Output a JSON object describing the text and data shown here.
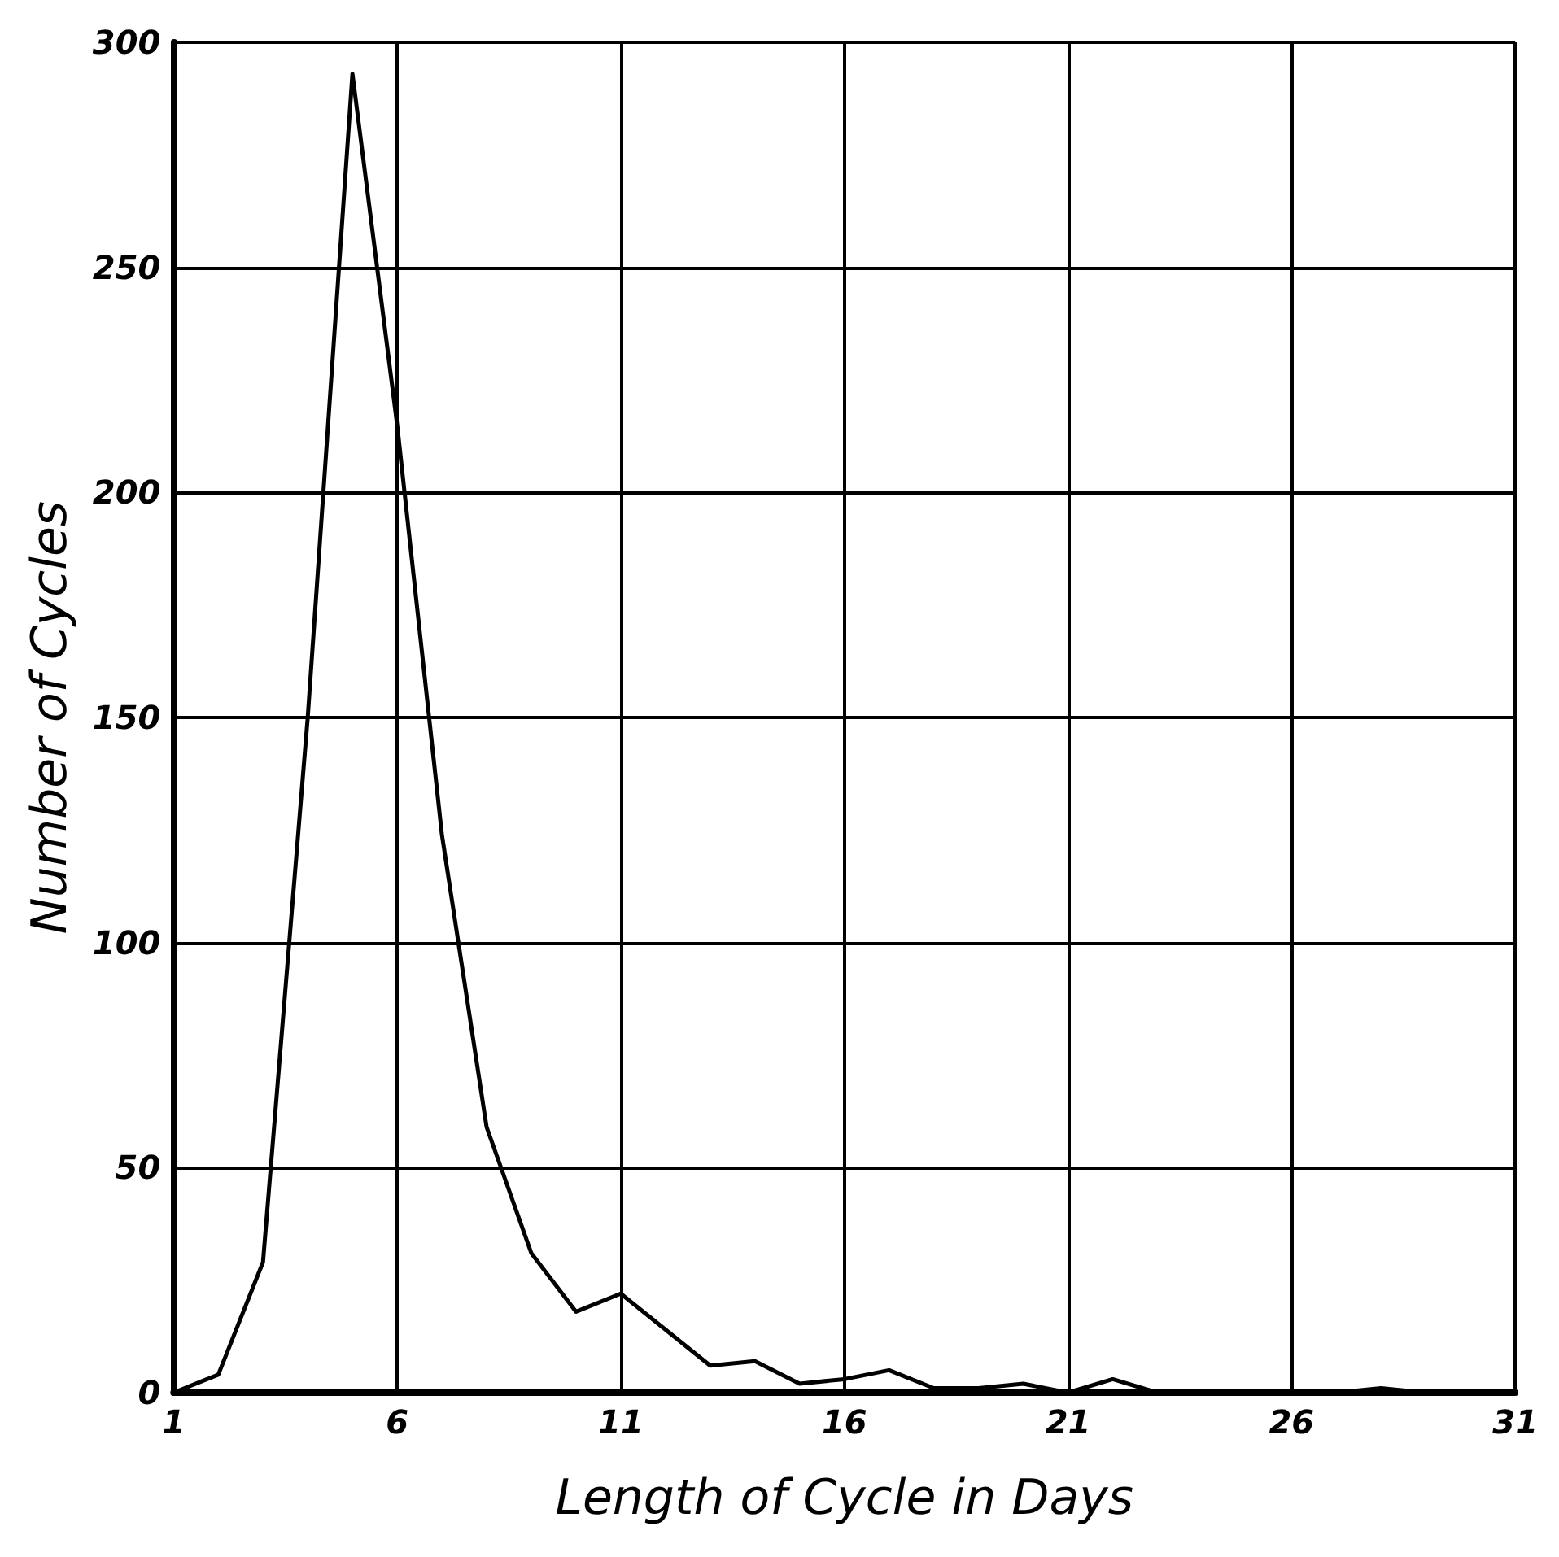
{
  "chart_data": {
    "type": "line",
    "xlabel": "Length of Cycle in Days",
    "ylabel": "Number of Cycles",
    "x": [
      1,
      2,
      3,
      4,
      5,
      6,
      7,
      8,
      9,
      10,
      11,
      12,
      13,
      14,
      15,
      16,
      17,
      18,
      19,
      20,
      21,
      22,
      23,
      24,
      25,
      26,
      27,
      28,
      29,
      30,
      31
    ],
    "series": [
      {
        "color": "#000000",
        "values": [
          0,
          4,
          29,
          150,
          293,
          215,
          124,
          59,
          31,
          18,
          22,
          14,
          6,
          7,
          2,
          3,
          5,
          1,
          1,
          2,
          0,
          3,
          0,
          0,
          0,
          0,
          0,
          1,
          0,
          0,
          0
        ]
      }
    ],
    "xlim": [
      1,
      31
    ],
    "xticks": [
      1,
      6,
      11,
      16,
      21,
      26,
      31
    ],
    "ylim": [
      0,
      300
    ],
    "yticks": [
      0,
      50,
      100,
      150,
      200,
      250,
      300
    ],
    "grid": true,
    "marker": "none",
    "line_style": "solid"
  }
}
